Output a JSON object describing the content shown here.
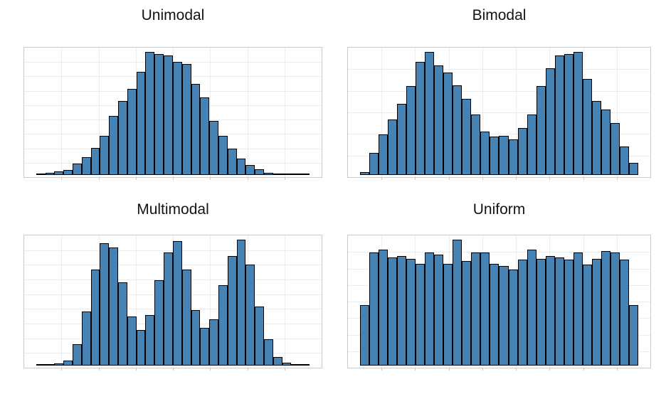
{
  "style": {
    "bar_fill": "#4682b4",
    "bar_edge": "#000000",
    "grid_color": "#ececec",
    "frame_color": "#c9c9c9",
    "title_color": "#141414",
    "background": "#ffffff"
  },
  "chart_data": [
    {
      "type": "bar",
      "subtype": "histogram",
      "title": "Unimodal",
      "n_bins": 30,
      "xlabel": "",
      "ylabel": "",
      "axis_tick_labels": false,
      "grid": {
        "on": true,
        "v_divisions": 8,
        "h_divisions": 9
      },
      "legend": "none",
      "values": [
        0.012,
        0.017,
        0.03,
        0.04,
        0.09,
        0.145,
        0.22,
        0.32,
        0.48,
        0.6,
        0.7,
        0.84,
        1.0,
        0.98,
        0.97,
        0.92,
        0.9,
        0.74,
        0.63,
        0.44,
        0.32,
        0.215,
        0.135,
        0.08,
        0.047,
        0.02,
        0.009,
        0.006,
        0.004,
        0.003
      ]
    },
    {
      "type": "bar",
      "subtype": "histogram",
      "title": "Bimodal",
      "n_bins": 30,
      "xlabel": "",
      "ylabel": "",
      "axis_tick_labels": false,
      "grid": {
        "on": true,
        "v_divisions": 9,
        "h_divisions": 6
      },
      "legend": "none",
      "values": [
        0.024,
        0.18,
        0.33,
        0.45,
        0.58,
        0.72,
        0.92,
        1.0,
        0.89,
        0.83,
        0.73,
        0.62,
        0.49,
        0.35,
        0.31,
        0.32,
        0.29,
        0.38,
        0.49,
        0.72,
        0.87,
        0.97,
        0.98,
        1.0,
        0.78,
        0.6,
        0.53,
        0.42,
        0.23,
        0.1
      ]
    },
    {
      "type": "bar",
      "subtype": "histogram",
      "title": "Multimodal",
      "n_bins": 30,
      "xlabel": "",
      "ylabel": "",
      "axis_tick_labels": false,
      "grid": {
        "on": true,
        "v_divisions": 8,
        "h_divisions": 9
      },
      "legend": "none",
      "values": [
        0.006,
        0.011,
        0.017,
        0.04,
        0.17,
        0.43,
        0.76,
        0.97,
        0.94,
        0.66,
        0.39,
        0.28,
        0.4,
        0.68,
        0.9,
        0.99,
        0.76,
        0.44,
        0.3,
        0.37,
        0.64,
        0.87,
        1.0,
        0.8,
        0.47,
        0.21,
        0.07,
        0.023,
        0.011,
        0.006
      ]
    },
    {
      "type": "bar",
      "subtype": "histogram",
      "title": "Uniform",
      "n_bins": 30,
      "xlabel": "",
      "ylabel": "",
      "axis_tick_labels": false,
      "grid": {
        "on": true,
        "v_divisions": 9,
        "h_divisions": 8
      },
      "legend": "none",
      "values": [
        0.48,
        0.9,
        0.92,
        0.86,
        0.87,
        0.85,
        0.81,
        0.9,
        0.88,
        0.81,
        1.0,
        0.83,
        0.9,
        0.9,
        0.81,
        0.79,
        0.76,
        0.84,
        0.92,
        0.85,
        0.87,
        0.86,
        0.84,
        0.9,
        0.8,
        0.85,
        0.91,
        0.9,
        0.84,
        0.48
      ]
    }
  ]
}
